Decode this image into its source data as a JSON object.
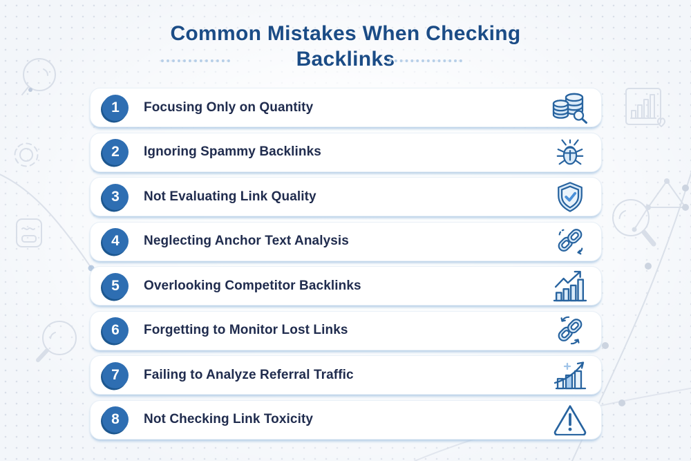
{
  "page": {
    "title_line1": "Common Mistakes When Checking",
    "title_line2": "Backlinks"
  },
  "rows": [
    {
      "number": "1",
      "label": "Focusing Only on Quantity",
      "icon": "database-search-icon"
    },
    {
      "number": "2",
      "label": "Ignoring Spammy Backlinks",
      "icon": "bug-icon"
    },
    {
      "number": "3",
      "label": "Not Evaluating Link Quality",
      "icon": "shield-check-icon"
    },
    {
      "number": "4",
      "label": "Neglecting Anchor Text Analysis",
      "icon": "chain-link-icon"
    },
    {
      "number": "5",
      "label": "Overlooking Competitor Backlinks",
      "icon": "bar-chart-up-arrow-icon"
    },
    {
      "number": "6",
      "label": "Forgetting to Monitor Lost Links",
      "icon": "link-refresh-icon"
    },
    {
      "number": "7",
      "label": "Failing to Analyze Referral Traffic",
      "icon": "traffic-growth-chart-icon"
    },
    {
      "number": "8",
      "label": "Not Checking Link Toxicity",
      "icon": "warning-triangle-icon"
    }
  ],
  "background_decorations": [
    "magnifier-decoration-icon-top-left",
    "gear-decoration-icon",
    "document-decoration-icon",
    "magnifier-decoration-icon-bottom-left",
    "framed-chart-decoration-icon",
    "magnifier-decoration-icon-right",
    "network-dots-decoration",
    "curved-line-decoration"
  ],
  "colors": {
    "title_text": "#1b4c86",
    "row_text": "#202c4e",
    "badge_fill": "#2e6eb2",
    "badge_edge": "#1d578f",
    "icon_stroke": "#27639f",
    "icon_fill_light": "#d9eaf9",
    "card_background": "#ffffff",
    "card_shadow": "#a8c5e2",
    "page_background": "#f3f6fa"
  }
}
